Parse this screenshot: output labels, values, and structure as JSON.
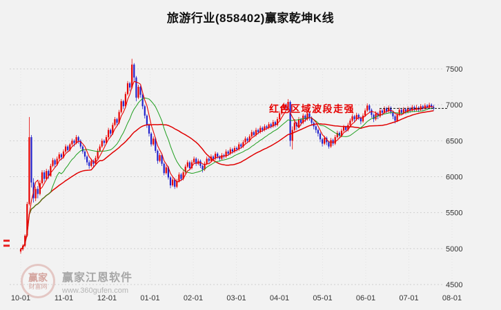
{
  "window": {
    "title": "旅游行业(858402)赢家乾坤K线"
  },
  "annotation": {
    "text": "红色区域波段走强"
  },
  "watermark": {
    "logo_top": "赢家",
    "logo_bottom": "财富网",
    "name": "赢家江恩软件",
    "url": "www.360gufen.com"
  },
  "colors": {
    "up": "#e80000",
    "down": "#2222cc",
    "ma_fast": "#e80000",
    "ma_mid": "#1e9e1e",
    "ma_slow": "#e00000",
    "grid": "#cfcfcf",
    "month_grid": "#e2e2e2",
    "axis_text": "#333333",
    "last_price_line": "#111111",
    "annotation": "#e60000",
    "background": "#f2f2f2"
  },
  "chart_data": {
    "type": "candlestick",
    "title": "旅游行业(858402)赢家乾坤K线",
    "xlabel": "",
    "ylabel": "",
    "x_tick_labels": [
      "10-01",
      "11-01",
      "12-01",
      "01-01",
      "02-01",
      "03-01",
      "04-01",
      "05-01",
      "06-01",
      "07-01",
      "08-01"
    ],
    "y_ticks": [
      7500,
      7000,
      6500,
      6000,
      5500,
      5000,
      4500
    ],
    "ylim": [
      4500,
      7600
    ],
    "grid": true,
    "last_price": 6950,
    "left_marker_prices": [
      5110,
      5040
    ],
    "moving_averages": [
      {
        "name": "MA-slow",
        "window": 34,
        "color_key": "ma_slow",
        "width": 1.5
      },
      {
        "name": "MA-mid",
        "window": 15,
        "color_key": "ma_mid",
        "width": 1.0
      },
      {
        "name": "MA-fast",
        "window": 5,
        "color_key": "ma_fast",
        "width": 1.1
      }
    ],
    "candles_ohlc": [
      [
        4960,
        5010,
        4930,
        4990
      ],
      [
        4990,
        5060,
        4970,
        5040
      ],
      [
        5040,
        5200,
        5020,
        5180
      ],
      [
        5180,
        5650,
        5160,
        5620
      ],
      [
        5620,
        6830,
        5600,
        6550
      ],
      [
        6550,
        6580,
        5850,
        5920
      ],
      [
        5920,
        5980,
        5640,
        5700
      ],
      [
        5700,
        5860,
        5660,
        5830
      ],
      [
        5830,
        5870,
        5700,
        5760
      ],
      [
        5760,
        5950,
        5740,
        5910
      ],
      [
        5910,
        6090,
        5890,
        6060
      ],
      [
        6060,
        6090,
        5930,
        5970
      ],
      [
        5970,
        6110,
        5950,
        6080
      ],
      [
        6080,
        6100,
        5970,
        6010
      ],
      [
        6010,
        6180,
        6000,
        6150
      ],
      [
        6150,
        6260,
        6130,
        6230
      ],
      [
        6230,
        6250,
        6130,
        6170
      ],
      [
        6170,
        6280,
        6150,
        6250
      ],
      [
        6250,
        6340,
        6230,
        6310
      ],
      [
        6310,
        6330,
        6230,
        6270
      ],
      [
        6270,
        6380,
        6250,
        6350
      ],
      [
        6350,
        6450,
        6330,
        6420
      ],
      [
        6420,
        6440,
        6340,
        6370
      ],
      [
        6370,
        6470,
        6350,
        6450
      ],
      [
        6450,
        6530,
        6430,
        6500
      ],
      [
        6500,
        6520,
        6420,
        6470
      ],
      [
        6470,
        6580,
        6450,
        6550
      ],
      [
        6550,
        6570,
        6460,
        6500
      ],
      [
        6500,
        6520,
        6390,
        6420
      ],
      [
        6420,
        6440,
        6320,
        6350
      ],
      [
        6350,
        6370,
        6240,
        6280
      ],
      [
        6280,
        6300,
        6160,
        6200
      ],
      [
        6200,
        6230,
        6110,
        6150
      ],
      [
        6150,
        6250,
        6130,
        6220
      ],
      [
        6220,
        6240,
        6140,
        6180
      ],
      [
        6180,
        6290,
        6160,
        6260
      ],
      [
        6260,
        6390,
        6240,
        6360
      ],
      [
        6360,
        6450,
        6340,
        6420
      ],
      [
        6420,
        6530,
        6400,
        6500
      ],
      [
        6500,
        6520,
        6430,
        6470
      ],
      [
        6470,
        6580,
        6450,
        6550
      ],
      [
        6550,
        6680,
        6530,
        6650
      ],
      [
        6650,
        6670,
        6560,
        6600
      ],
      [
        6600,
        6750,
        6580,
        6720
      ],
      [
        6720,
        6830,
        6700,
        6800
      ],
      [
        6800,
        6820,
        6710,
        6750
      ],
      [
        6750,
        6930,
        6730,
        6900
      ],
      [
        6900,
        7080,
        6880,
        7050
      ],
      [
        7050,
        7070,
        6940,
        6980
      ],
      [
        6980,
        7180,
        6960,
        7150
      ],
      [
        7150,
        7330,
        7130,
        7300
      ],
      [
        7300,
        7320,
        7190,
        7240
      ],
      [
        7240,
        7640,
        7220,
        7560
      ],
      [
        7560,
        7580,
        7330,
        7380
      ],
      [
        7380,
        7400,
        7050,
        7100
      ],
      [
        7100,
        7280,
        7080,
        7250
      ],
      [
        7250,
        7270,
        7100,
        7140
      ],
      [
        7140,
        7160,
        6940,
        6980
      ],
      [
        6980,
        7000,
        6810,
        6850
      ],
      [
        6850,
        6870,
        6680,
        6720
      ],
      [
        6720,
        6740,
        6560,
        6600
      ],
      [
        6600,
        6620,
        6420,
        6450
      ],
      [
        6450,
        6560,
        6430,
        6530
      ],
      [
        6530,
        6550,
        6330,
        6360
      ],
      [
        6360,
        6380,
        6180,
        6220
      ],
      [
        6220,
        6330,
        6200,
        6300
      ],
      [
        6300,
        6320,
        6150,
        6180
      ],
      [
        6180,
        6200,
        6020,
        6050
      ],
      [
        6050,
        6160,
        6030,
        6130
      ],
      [
        6130,
        6150,
        5960,
        5990
      ],
      [
        5990,
        6010,
        5840,
        5880
      ],
      [
        5880,
        5990,
        5860,
        5960
      ],
      [
        5960,
        5980,
        5830,
        5860
      ],
      [
        5860,
        5970,
        5840,
        5940
      ],
      [
        5940,
        6060,
        5920,
        6030
      ],
      [
        6030,
        6050,
        5940,
        5970
      ],
      [
        5970,
        6090,
        5950,
        6060
      ],
      [
        6060,
        6170,
        6040,
        6140
      ],
      [
        6140,
        6230,
        6120,
        6200
      ],
      [
        6200,
        6220,
        6090,
        6120
      ],
      [
        6120,
        6230,
        6100,
        6200
      ],
      [
        6200,
        6280,
        6180,
        6250
      ],
      [
        6250,
        6270,
        6150,
        6180
      ],
      [
        6180,
        6250,
        6160,
        6220
      ],
      [
        6220,
        6240,
        6120,
        6150
      ],
      [
        6150,
        6170,
        6060,
        6100
      ],
      [
        6100,
        6210,
        6080,
        6180
      ],
      [
        6180,
        6280,
        6160,
        6250
      ],
      [
        6250,
        6270,
        6190,
        6220
      ],
      [
        6220,
        6310,
        6200,
        6280
      ],
      [
        6280,
        6300,
        6220,
        6250
      ],
      [
        6250,
        6350,
        6230,
        6320
      ],
      [
        6320,
        6340,
        6250,
        6280
      ],
      [
        6280,
        6300,
        6220,
        6250
      ],
      [
        6250,
        6330,
        6230,
        6300
      ],
      [
        6300,
        6320,
        6250,
        6280
      ],
      [
        6280,
        6380,
        6260,
        6350
      ],
      [
        6350,
        6370,
        6290,
        6320
      ],
      [
        6320,
        6410,
        6300,
        6380
      ],
      [
        6380,
        6400,
        6320,
        6350
      ],
      [
        6350,
        6430,
        6330,
        6400
      ],
      [
        6400,
        6420,
        6350,
        6380
      ],
      [
        6380,
        6480,
        6360,
        6450
      ],
      [
        6450,
        6470,
        6390,
        6420
      ],
      [
        6420,
        6510,
        6400,
        6480
      ],
      [
        6480,
        6560,
        6460,
        6530
      ],
      [
        6530,
        6550,
        6470,
        6500
      ],
      [
        6500,
        6590,
        6480,
        6560
      ],
      [
        6560,
        6650,
        6540,
        6620
      ],
      [
        6620,
        6640,
        6550,
        6580
      ],
      [
        6580,
        6680,
        6560,
        6650
      ],
      [
        6650,
        6670,
        6590,
        6620
      ],
      [
        6620,
        6710,
        6600,
        6680
      ],
      [
        6680,
        6700,
        6620,
        6650
      ],
      [
        6650,
        6730,
        6630,
        6700
      ],
      [
        6700,
        6720,
        6650,
        6680
      ],
      [
        6680,
        6760,
        6660,
        6730
      ],
      [
        6730,
        6750,
        6670,
        6700
      ],
      [
        6700,
        6790,
        6680,
        6760
      ],
      [
        6760,
        6780,
        6690,
        6720
      ],
      [
        6720,
        6830,
        6700,
        6800
      ],
      [
        6800,
        6910,
        6780,
        6880
      ],
      [
        6880,
        6980,
        6860,
        6950
      ],
      [
        6950,
        7030,
        6930,
        7000
      ],
      [
        7000,
        7020,
        6920,
        6960
      ],
      [
        6960,
        7080,
        6940,
        7040
      ],
      [
        7040,
        7060,
        6420,
        6500
      ],
      [
        6500,
        6700,
        6380,
        6650
      ],
      [
        6650,
        6800,
        6630,
        6750
      ],
      [
        6750,
        6770,
        6650,
        6700
      ],
      [
        6700,
        6830,
        6680,
        6800
      ],
      [
        6800,
        6820,
        6710,
        6750
      ],
      [
        6750,
        6880,
        6730,
        6850
      ],
      [
        6850,
        6870,
        6760,
        6800
      ],
      [
        6800,
        6910,
        6780,
        6880
      ],
      [
        6880,
        6900,
        6780,
        6820
      ],
      [
        6820,
        6840,
        6710,
        6750
      ],
      [
        6750,
        6770,
        6660,
        6700
      ],
      [
        6700,
        6720,
        6610,
        6650
      ],
      [
        6650,
        6670,
        6560,
        6600
      ],
      [
        6600,
        6620,
        6480,
        6520
      ],
      [
        6520,
        6540,
        6420,
        6460
      ],
      [
        6460,
        6570,
        6440,
        6540
      ],
      [
        6540,
        6560,
        6440,
        6480
      ],
      [
        6480,
        6500,
        6390,
        6420
      ],
      [
        6420,
        6540,
        6400,
        6510
      ],
      [
        6510,
        6530,
        6430,
        6460
      ],
      [
        6460,
        6580,
        6440,
        6550
      ],
      [
        6550,
        6640,
        6530,
        6610
      ],
      [
        6610,
        6630,
        6540,
        6570
      ],
      [
        6570,
        6670,
        6550,
        6640
      ],
      [
        6640,
        6720,
        6620,
        6690
      ],
      [
        6690,
        6710,
        6620,
        6650
      ],
      [
        6650,
        6750,
        6630,
        6720
      ],
      [
        6720,
        6810,
        6700,
        6780
      ],
      [
        6780,
        6870,
        6760,
        6840
      ],
      [
        6840,
        6860,
        6760,
        6800
      ],
      [
        6800,
        6890,
        6780,
        6860
      ],
      [
        6860,
        6880,
        6790,
        6820
      ],
      [
        6820,
        6840,
        6730,
        6770
      ],
      [
        6770,
        6880,
        6750,
        6850
      ],
      [
        6850,
        6950,
        6830,
        6920
      ],
      [
        6920,
        7020,
        6900,
        6990
      ],
      [
        6990,
        7010,
        6890,
        6930
      ],
      [
        6930,
        6950,
        6820,
        6860
      ],
      [
        6860,
        6880,
        6760,
        6800
      ],
      [
        6800,
        6910,
        6780,
        6880
      ],
      [
        6880,
        6900,
        6800,
        6840
      ],
      [
        6840,
        6950,
        6820,
        6920
      ],
      [
        6920,
        6940,
        6850,
        6890
      ],
      [
        6890,
        6980,
        6870,
        6950
      ],
      [
        6950,
        6970,
        6880,
        6910
      ],
      [
        6910,
        6990,
        6890,
        6960
      ],
      [
        6960,
        6980,
        6870,
        6900
      ],
      [
        6900,
        6920,
        6800,
        6840
      ],
      [
        6840,
        6860,
        6740,
        6780
      ],
      [
        6780,
        6890,
        6760,
        6860
      ],
      [
        6860,
        6960,
        6840,
        6930
      ],
      [
        6930,
        6950,
        6860,
        6890
      ],
      [
        6890,
        6970,
        6870,
        6940
      ],
      [
        6940,
        6960,
        6870,
        6900
      ],
      [
        6900,
        6980,
        6880,
        6950
      ],
      [
        6950,
        6970,
        6890,
        6920
      ],
      [
        6920,
        7000,
        6900,
        6970
      ],
      [
        6970,
        6990,
        6900,
        6930
      ],
      [
        6930,
        7000,
        6910,
        6960
      ],
      [
        6960,
        6980,
        6900,
        6930
      ],
      [
        6930,
        7010,
        6910,
        6980
      ],
      [
        6980,
        7000,
        6920,
        6950
      ],
      [
        6950,
        7020,
        6930,
        6990
      ],
      [
        6990,
        7010,
        6930,
        6960
      ],
      [
        6960,
        7030,
        6940,
        7000
      ],
      [
        7000,
        7020,
        6940,
        6970
      ],
      [
        6970,
        7000,
        6920,
        6950
      ]
    ]
  }
}
